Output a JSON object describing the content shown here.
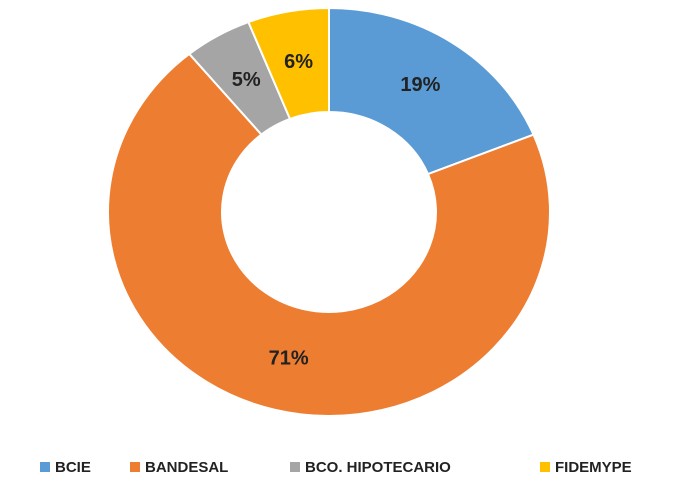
{
  "chart_data": {
    "type": "donut",
    "categories": [
      "BCIE",
      "BANDESAL",
      "BCO. HIPOTECARIO",
      "FIDEMYPE"
    ],
    "values": [
      19,
      71,
      5,
      6
    ],
    "value_labels": [
      "19%",
      "71%",
      "5%",
      "6%"
    ],
    "colors": [
      "#5b9bd5",
      "#ed7d31",
      "#a5a5a5",
      "#ffc000"
    ],
    "legend": "bottom"
  }
}
